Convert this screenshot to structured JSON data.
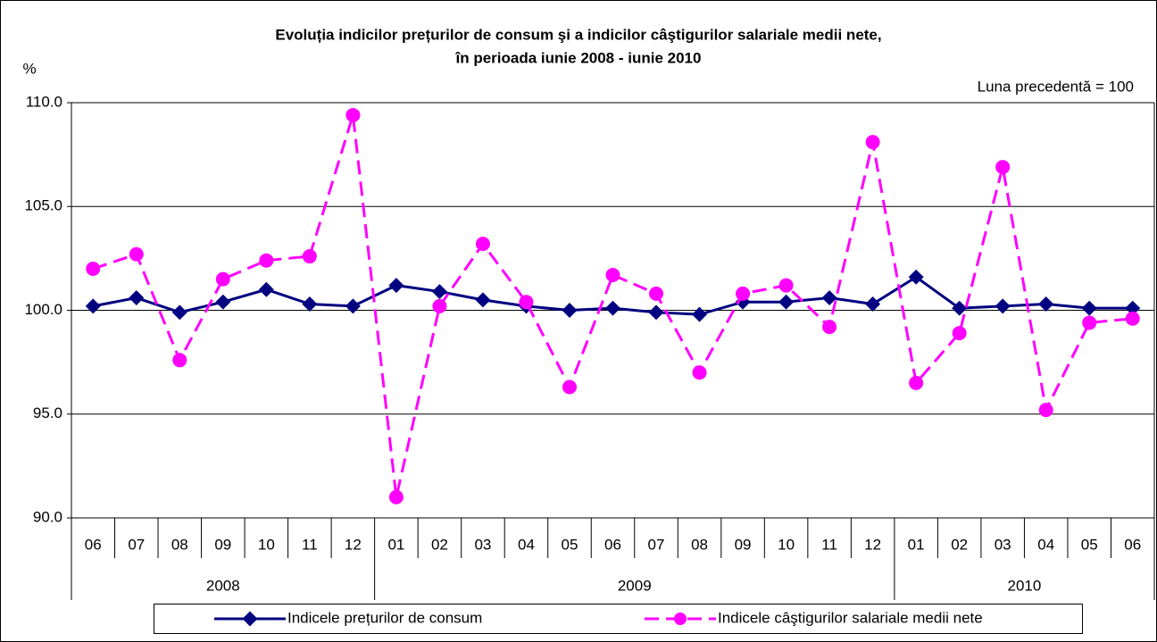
{
  "chart_data": {
    "type": "line",
    "title": "Evoluția indicilor prețurilor de consum şi a indicilor câştigurilor salariale medii nete,",
    "subtitle": "în perioada iunie 2008 - iunie 2010",
    "y_label": "%",
    "annotation": "Luna precedentă = 100",
    "categories": [
      "06",
      "07",
      "08",
      "09",
      "10",
      "11",
      "12",
      "01",
      "02",
      "03",
      "04",
      "05",
      "06",
      "07",
      "08",
      "09",
      "10",
      "11",
      "12",
      "01",
      "02",
      "03",
      "04",
      "05",
      "06"
    ],
    "category_years": [
      "2008",
      "2008",
      "2008",
      "2008",
      "2008",
      "2008",
      "2008",
      "2009",
      "2009",
      "2009",
      "2009",
      "2009",
      "2009",
      "2009",
      "2009",
      "2009",
      "2009",
      "2009",
      "2009",
      "2010",
      "2010",
      "2010",
      "2010",
      "2010",
      "2010"
    ],
    "series": [
      {
        "name": "Indicele prețurilor de consum",
        "color": "#000080",
        "values": [
          100.2,
          100.6,
          99.9,
          100.4,
          101.0,
          100.3,
          100.2,
          101.2,
          100.9,
          100.5,
          100.2,
          100.0,
          100.1,
          99.9,
          99.8,
          100.4,
          100.4,
          100.6,
          100.3,
          101.6,
          100.1,
          100.2,
          100.3,
          100.1,
          100.1
        ]
      },
      {
        "name": "Indicele câştigurilor salariale medii nete",
        "color": "#ff00ff",
        "values": [
          102.0,
          102.7,
          97.6,
          101.5,
          102.4,
          102.6,
          109.4,
          91.0,
          100.2,
          103.2,
          100.4,
          96.3,
          101.7,
          100.8,
          97.0,
          100.8,
          101.2,
          99.2,
          108.1,
          96.5,
          98.9,
          106.9,
          95.2,
          99.4,
          99.6
        ]
      }
    ],
    "ylim": [
      90,
      110
    ],
    "yticks": [
      {
        "value": 90,
        "label": "90.0"
      },
      {
        "value": 95,
        "label": "95.0"
      },
      {
        "value": 100,
        "label": "100.0"
      },
      {
        "value": 105,
        "label": "105.0"
      },
      {
        "value": 110,
        "label": "110.0"
      }
    ],
    "grid": true
  }
}
